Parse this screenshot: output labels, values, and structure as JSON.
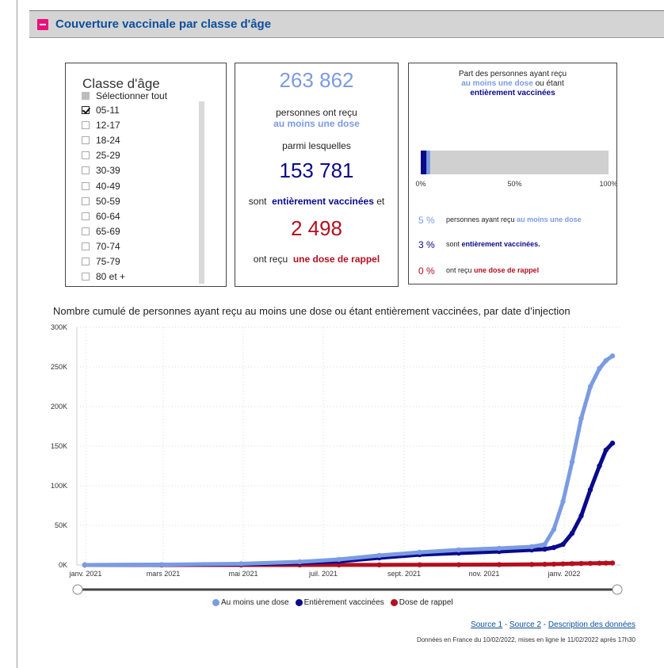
{
  "section": {
    "title": "Couverture vaccinale par classe d'âge"
  },
  "age_filter": {
    "title": "Classe d'âge",
    "select_all": "Sélectionner tout",
    "items": [
      {
        "label": "05-11",
        "checked": true
      },
      {
        "label": "12-17",
        "checked": false
      },
      {
        "label": "18-24",
        "checked": false
      },
      {
        "label": "25-29",
        "checked": false
      },
      {
        "label": "30-39",
        "checked": false
      },
      {
        "label": "40-49",
        "checked": false
      },
      {
        "label": "50-59",
        "checked": false
      },
      {
        "label": "60-64",
        "checked": false
      },
      {
        "label": "65-69",
        "checked": false
      },
      {
        "label": "70-74",
        "checked": false
      },
      {
        "label": "75-79",
        "checked": false
      },
      {
        "label": "80 et +",
        "checked": false
      }
    ]
  },
  "counts": {
    "one_dose_value": "263 862",
    "one_dose_text": "personnes ont reçu",
    "one_dose_emph": "au moins une dose",
    "among": "parmi lesquelles",
    "full_value": "153 781",
    "full_prefix": "sont",
    "full_emph": "entièrement vaccinées",
    "full_suffix": "et",
    "booster_value": "2 498",
    "booster_prefix": "ont reçu",
    "booster_emph": "une dose de rappel"
  },
  "share": {
    "title_line1": "Part des personnes ayant reçu",
    "title_emph1": "au moins une dose",
    "title_mid": "ou étant",
    "title_emph2": "entièrement vaccinées",
    "bar_ticks": [
      "0%",
      "50%",
      "100%"
    ],
    "bar_values": {
      "one_dose": 5,
      "full": 3,
      "booster": 0
    },
    "rows": [
      {
        "pct": "5 %",
        "text": "personnes ayant reçu",
        "emph": "au moins une dose"
      },
      {
        "pct": "3 %",
        "text": "sont",
        "emph": "entièrement vaccinées."
      },
      {
        "pct": "0 %",
        "text": "ont reçu",
        "emph": "une dose de rappel"
      }
    ]
  },
  "colors": {
    "one_dose": "#7b9be2",
    "full": "#0a0a8c",
    "booster": "#b40f1e",
    "bar_bg": "#d0d0d0",
    "accent": "#e8117a",
    "title_blue": "#0b4f9c"
  },
  "chart_data": {
    "type": "line",
    "title": "Nombre cumulé de personnes ayant reçu au moins une dose ou étant entièrement vaccinées, par date d’injection",
    "x_ticks": [
      "janv. 2021",
      "mars 2021",
      "mai 2021",
      "juil. 2021",
      "sept. 2021",
      "nov. 2021",
      "janv. 2022"
    ],
    "y_ticks": [
      "0K",
      "50K",
      "100K",
      "150K",
      "200K",
      "250K",
      "300K"
    ],
    "ylim": [
      0,
      300000
    ],
    "xlim": [
      "2021-01-01",
      "2022-02-10"
    ],
    "grid": true,
    "legend_position": "bottom",
    "x": [
      "2021-01-01",
      "2021-03-01",
      "2021-05-01",
      "2021-06-15",
      "2021-07-15",
      "2021-08-15",
      "2021-09-15",
      "2021-10-15",
      "2021-11-15",
      "2021-12-10",
      "2021-12-20",
      "2021-12-27",
      "2022-01-03",
      "2022-01-10",
      "2022-01-17",
      "2022-01-24",
      "2022-01-31",
      "2022-02-05",
      "2022-02-10"
    ],
    "series": [
      {
        "name": "Au moins une dose",
        "values": [
          0,
          400,
          1500,
          4000,
          7000,
          12000,
          16000,
          19000,
          21000,
          23000,
          26000,
          45000,
          80000,
          130000,
          185000,
          225000,
          248000,
          258000,
          263862
        ]
      },
      {
        "name": "Entièrement vaccinées",
        "values": [
          0,
          200,
          900,
          2500,
          4500,
          9000,
          13000,
          15000,
          17000,
          19000,
          20000,
          22000,
          26000,
          40000,
          62000,
          95000,
          125000,
          145000,
          153781
        ]
      },
      {
        "name": "Dose de rappel",
        "values": [
          0,
          0,
          0,
          50,
          100,
          150,
          250,
          350,
          500,
          700,
          900,
          1100,
          1400,
          1700,
          1900,
          2100,
          2300,
          2400,
          2498
        ]
      }
    ]
  },
  "sources": {
    "source1": "Source 1",
    "sep1": " - ",
    "source2": "Source 2",
    "sep2": " - ",
    "description": "Description des données"
  },
  "footnote": "Données en France du 10/02/2022, mises en ligne le 11/02/2022 après 17h30"
}
